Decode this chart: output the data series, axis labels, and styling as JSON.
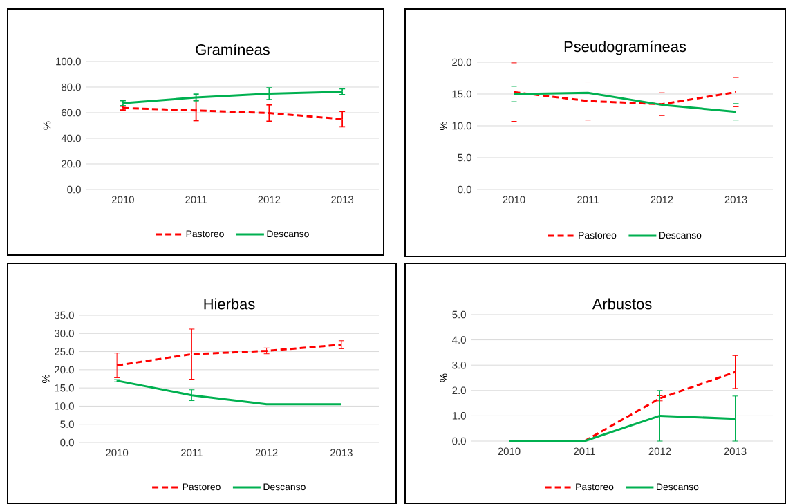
{
  "chart_data": [
    {
      "type": "line",
      "title": "Gramíneas",
      "ylabel": "%",
      "categories": [
        "2010",
        "2011",
        "2012",
        "2013"
      ],
      "ylim": [
        0,
        100
      ],
      "yticks": [
        {
          "value": 0,
          "label": "0.0"
        },
        {
          "value": 20,
          "label": "20.0"
        },
        {
          "value": 40,
          "label": "40.0"
        },
        {
          "value": 60,
          "label": "60.0"
        },
        {
          "value": 80,
          "label": "80.0"
        },
        {
          "value": 100,
          "label": "100.0"
        }
      ],
      "grid": "y",
      "legend": "bottom",
      "marker": "none",
      "series": [
        {
          "name": "Pastoreo",
          "color": "#ff0000",
          "line_style": "dashed",
          "values": [
            63.6,
            61.8,
            59.7,
            55.0
          ],
          "errors": [
            1.5,
            8.0,
            6.4,
            6.0
          ]
        },
        {
          "name": "Descanso",
          "color": "#00b050",
          "line_style": "solid",
          "values": [
            67.4,
            71.9,
            74.8,
            76.4
          ],
          "errors": [
            2.0,
            2.6,
            4.6,
            2.3
          ]
        }
      ]
    },
    {
      "type": "line",
      "title": "Pseudogramíneas",
      "ylabel": "%",
      "categories": [
        "2010",
        "2011",
        "2012",
        "2013"
      ],
      "ylim": [
        0,
        20
      ],
      "yticks": [
        {
          "value": 0,
          "label": "0.0"
        },
        {
          "value": 5,
          "label": "5.0"
        },
        {
          "value": 10,
          "label": "10.0"
        },
        {
          "value": 15,
          "label": "15.0"
        },
        {
          "value": 20,
          "label": "20.0"
        }
      ],
      "grid": "y",
      "legend": "bottom",
      "marker": "none",
      "series": [
        {
          "name": "Pastoreo",
          "color": "#ff0000",
          "line_style": "dashed",
          "values": [
            15.3,
            13.9,
            13.4,
            15.3
          ],
          "errors": [
            4.6,
            3.0,
            1.8,
            2.3
          ]
        },
        {
          "name": "Descanso",
          "color": "#00b050",
          "line_style": "solid",
          "values": [
            15.0,
            15.2,
            13.3,
            12.2
          ],
          "errors": [
            1.2,
            null,
            null,
            1.3
          ]
        }
      ]
    },
    {
      "type": "line",
      "title": "Hierbas",
      "ylabel": "%",
      "categories": [
        "2010",
        "2011",
        "2012",
        "2013"
      ],
      "ylim": [
        0,
        35
      ],
      "yticks": [
        {
          "value": 0,
          "label": "0.0"
        },
        {
          "value": 5,
          "label": "5.0"
        },
        {
          "value": 10,
          "label": "10.0"
        },
        {
          "value": 15,
          "label": "15.0"
        },
        {
          "value": 20,
          "label": "20.0"
        },
        {
          "value": 25,
          "label": "25.0"
        },
        {
          "value": 30,
          "label": "30.0"
        },
        {
          "value": 35,
          "label": "35.0"
        }
      ],
      "grid": "y",
      "legend": "bottom",
      "marker": "none",
      "series": [
        {
          "name": "Pastoreo",
          "color": "#ff0000",
          "line_style": "dashed",
          "values": [
            21.2,
            24.3,
            25.2,
            26.9
          ],
          "errors": [
            3.4,
            6.9,
            0.8,
            1.1
          ]
        },
        {
          "name": "Descanso",
          "color": "#00b050",
          "line_style": "solid",
          "values": [
            17.0,
            13.0,
            10.5,
            10.5
          ],
          "errors": [
            0.3,
            1.5,
            null,
            null
          ]
        }
      ]
    },
    {
      "type": "line",
      "title": "Arbustos",
      "ylabel": "%",
      "categories": [
        "2010",
        "2011",
        "2012",
        "2013"
      ],
      "ylim": [
        0,
        5
      ],
      "yticks": [
        {
          "value": 0,
          "label": "0.0"
        },
        {
          "value": 1,
          "label": "1.0"
        },
        {
          "value": 2,
          "label": "2.0"
        },
        {
          "value": 3,
          "label": "3.0"
        },
        {
          "value": 4,
          "label": "4.0"
        },
        {
          "value": 5,
          "label": "5.0"
        }
      ],
      "grid": "y",
      "legend": "bottom",
      "marker": "none",
      "series": [
        {
          "name": "Pastoreo",
          "color": "#ff0000",
          "line_style": "dashed",
          "values": [
            null,
            0,
            1.69,
            2.73
          ],
          "errors": [
            null,
            null,
            0.1,
            0.65
          ]
        },
        {
          "name": "Descanso",
          "color": "#00b050",
          "line_style": "solid",
          "values": [
            0,
            0,
            1.0,
            0.88
          ],
          "errors": [
            null,
            null,
            1.0,
            [
              0,
              1.78
            ]
          ]
        }
      ]
    }
  ]
}
